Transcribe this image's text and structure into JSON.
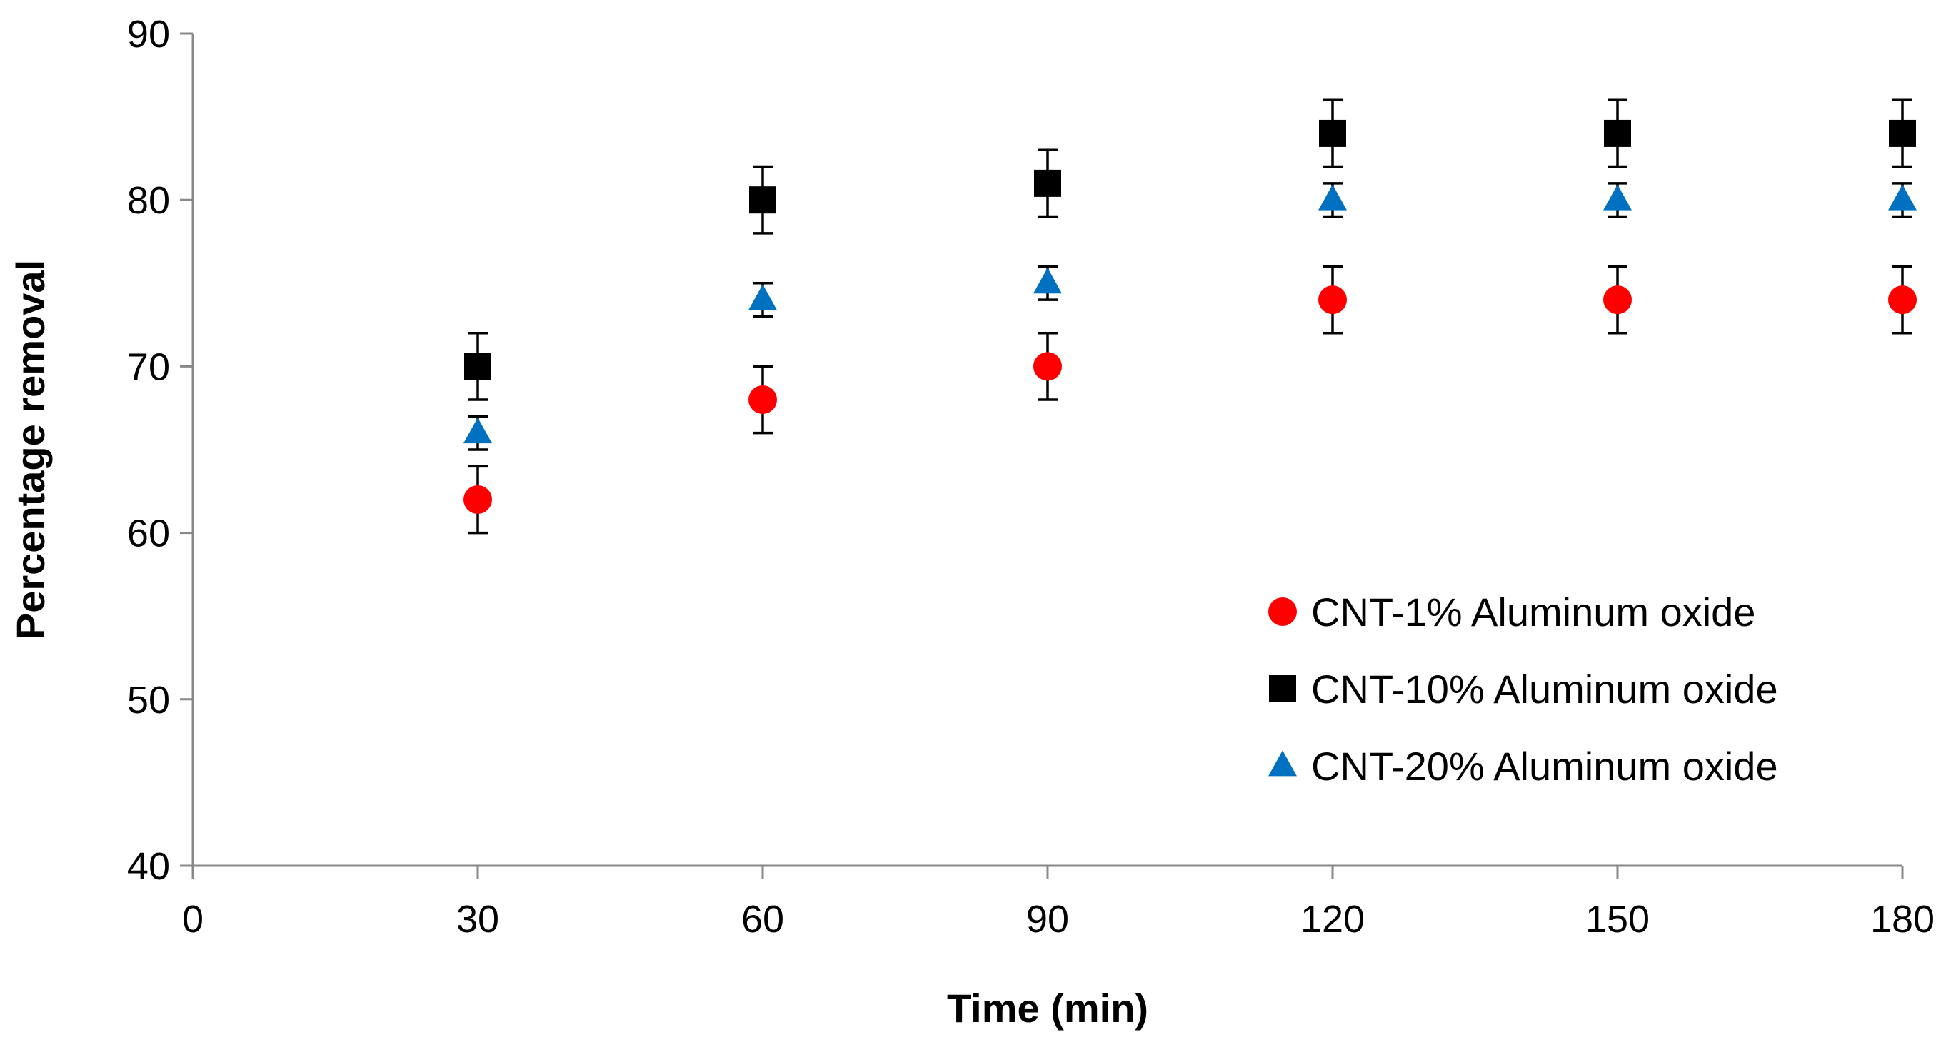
{
  "chart_data": {
    "type": "scatter",
    "title": "",
    "xlabel": "Time (min)",
    "ylabel": "Percentage removal",
    "xlim": [
      0,
      180
    ],
    "ylim": [
      40,
      90
    ],
    "xticks": [
      0,
      30,
      60,
      90,
      120,
      150,
      180
    ],
    "yticks": [
      40,
      50,
      60,
      70,
      80,
      90
    ],
    "grid": false,
    "legend_position": "right-center",
    "x": [
      30,
      60,
      90,
      120,
      150,
      180
    ],
    "series": [
      {
        "name": "CNT-1% Aluminum oxide",
        "marker": "circle",
        "color": "#ff0000",
        "values": [
          62,
          68,
          70,
          74,
          74,
          74
        ],
        "error": [
          2,
          2,
          2,
          2,
          2,
          2
        ]
      },
      {
        "name": "CNT-10% Aluminum oxide",
        "marker": "square",
        "color": "#000000",
        "values": [
          70,
          80,
          81,
          84,
          84,
          84
        ],
        "error": [
          2,
          2,
          2,
          2,
          2,
          2
        ]
      },
      {
        "name": "CNT-20% Aluminum oxide",
        "marker": "triangle",
        "color": "#0070c0",
        "values": [
          66,
          74,
          75,
          80,
          80,
          80
        ],
        "error": [
          1,
          1,
          1,
          1,
          1,
          1
        ]
      }
    ]
  }
}
